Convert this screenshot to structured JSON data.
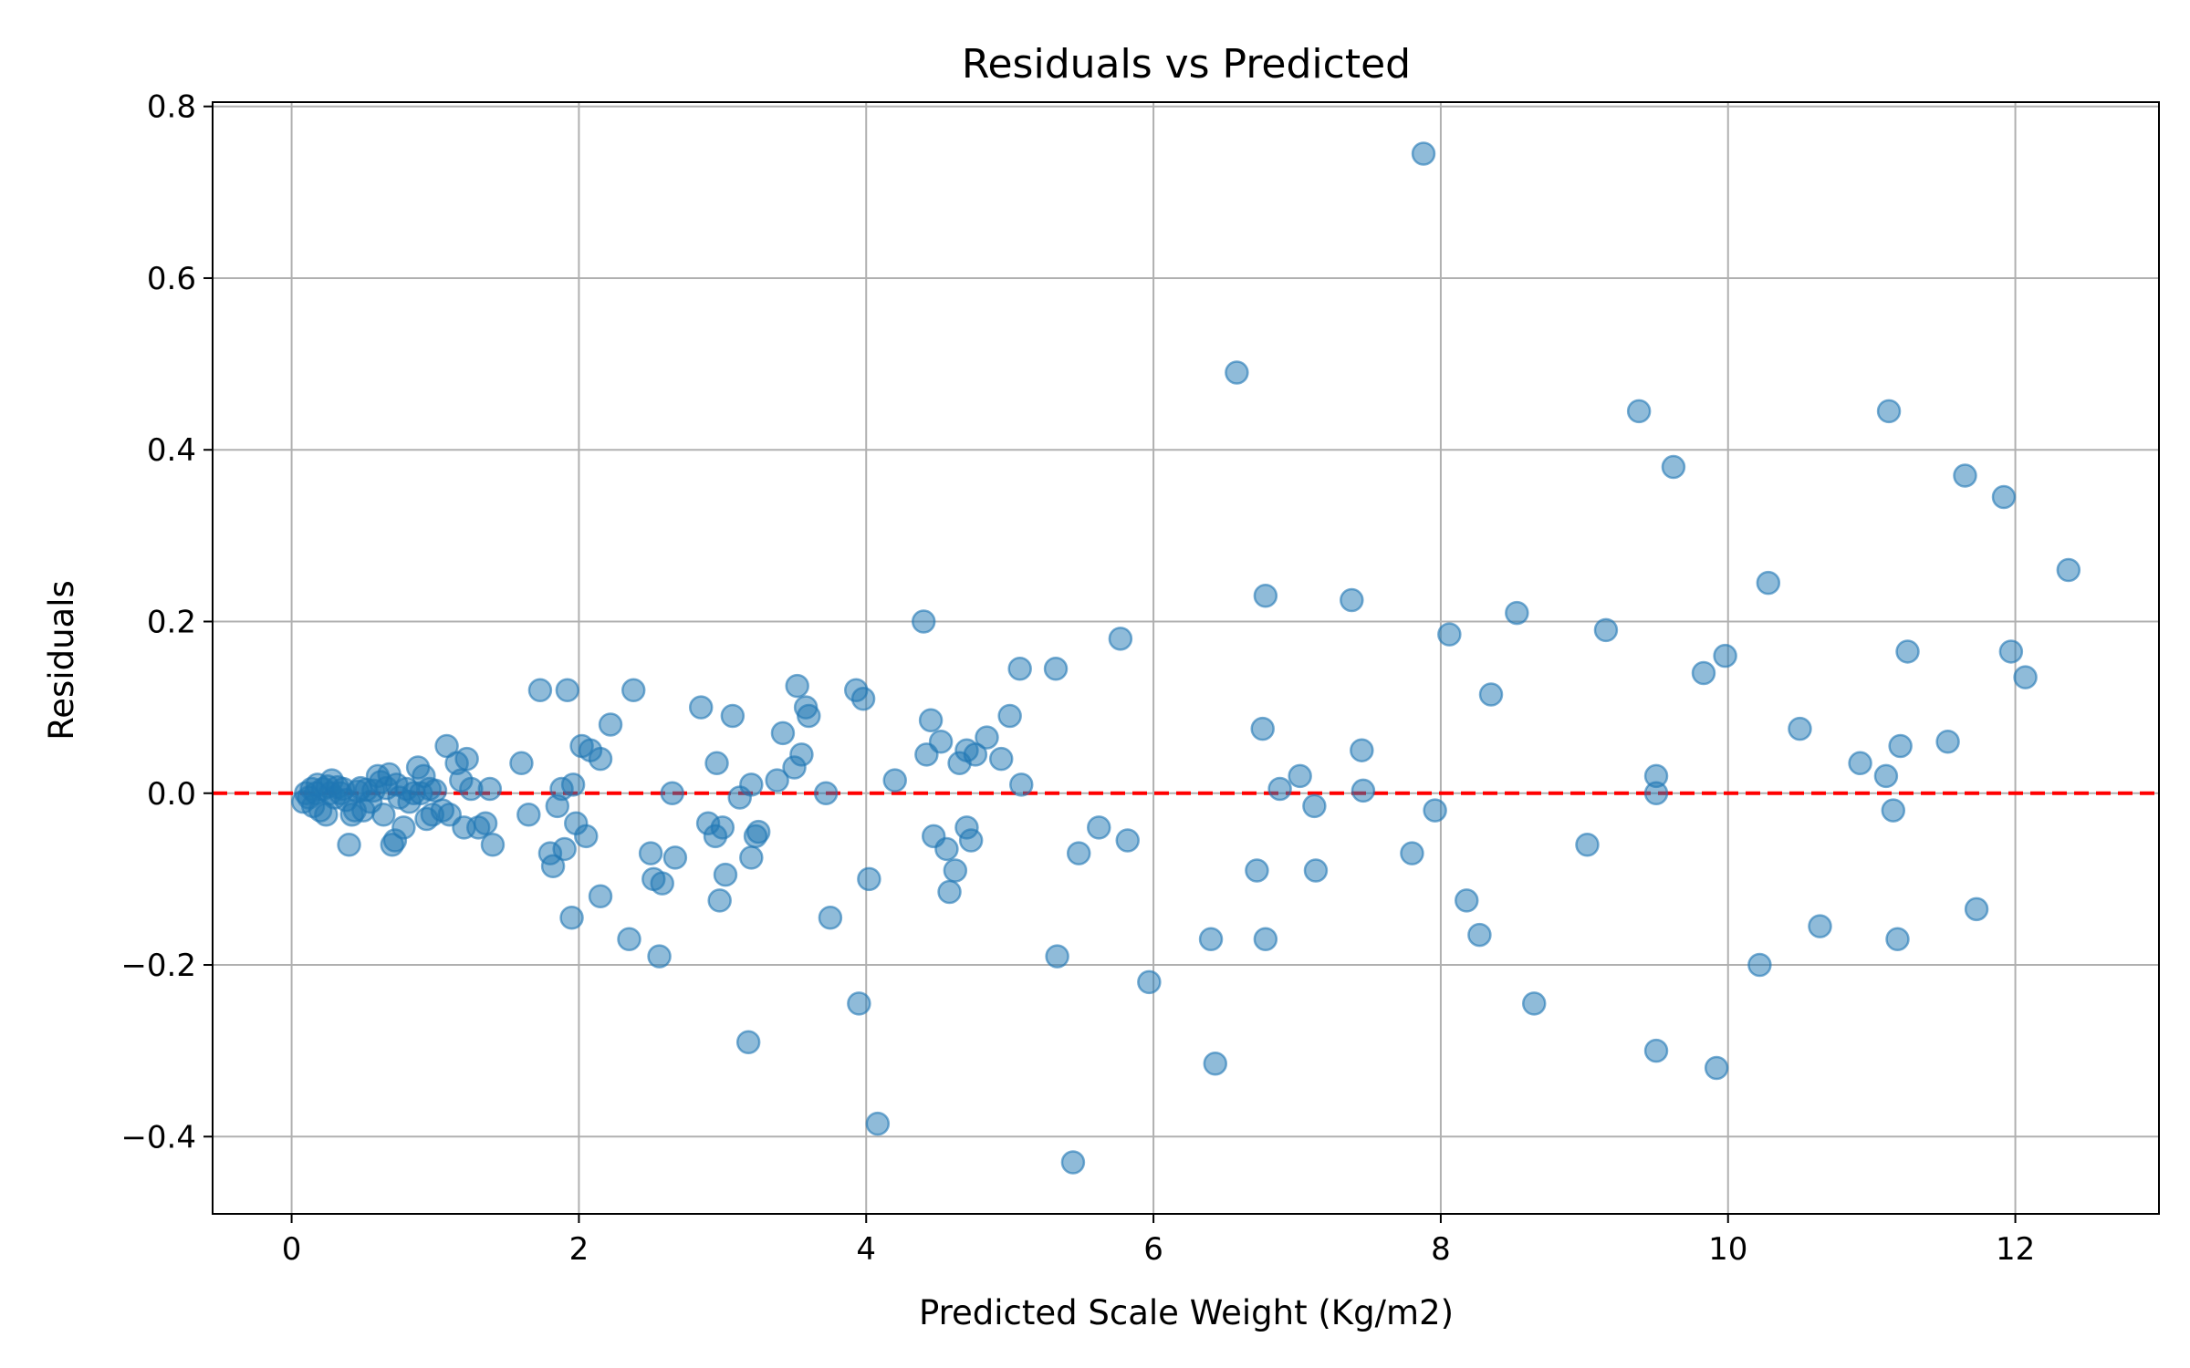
{
  "chart_data": {
    "type": "scatter",
    "title": "Residuals vs Predicted",
    "xlabel": "Predicted Scale Weight (Kg/m2)",
    "ylabel": "Residuals",
    "xlim": [
      -0.55,
      13.0
    ],
    "ylim": [
      -0.49,
      0.805
    ],
    "xticks": [
      0,
      2,
      4,
      6,
      8,
      10,
      12
    ],
    "xtick_labels": [
      "0",
      "2",
      "4",
      "6",
      "8",
      "10",
      "12"
    ],
    "yticks": [
      -0.4,
      -0.2,
      0.0,
      0.2,
      0.4,
      0.6,
      0.8
    ],
    "ytick_labels": [
      "−0.4",
      "−0.2",
      "0.0",
      "0.2",
      "0.4",
      "0.6",
      "0.8"
    ],
    "grid": true,
    "reference_line": {
      "y": 0.0,
      "style": "dashed",
      "color": "#ff0000"
    },
    "marker_color": "#1f77b4",
    "points": [
      [
        0.08,
        -0.01
      ],
      [
        0.1,
        0.0
      ],
      [
        0.12,
        -0.005
      ],
      [
        0.14,
        0.005
      ],
      [
        0.15,
        -0.015
      ],
      [
        0.17,
        0.0
      ],
      [
        0.18,
        0.01
      ],
      [
        0.2,
        -0.02
      ],
      [
        0.22,
        0.005
      ],
      [
        0.24,
        -0.025
      ],
      [
        0.25,
        0.008
      ],
      [
        0.27,
        0.0
      ],
      [
        0.28,
        0.015
      ],
      [
        0.3,
        -0.005
      ],
      [
        0.32,
        0.007
      ],
      [
        0.34,
        0.0
      ],
      [
        0.36,
        0.005
      ],
      [
        0.38,
        -0.008
      ],
      [
        0.4,
        -0.06
      ],
      [
        0.42,
        -0.025
      ],
      [
        0.44,
        -0.02
      ],
      [
        0.46,
        0.002
      ],
      [
        0.48,
        0.006
      ],
      [
        0.5,
        -0.02
      ],
      [
        0.52,
        0.004
      ],
      [
        0.55,
        -0.01
      ],
      [
        0.57,
        0.003
      ],
      [
        0.6,
        0.02
      ],
      [
        0.62,
        0.013
      ],
      [
        0.64,
        -0.025
      ],
      [
        0.66,
        0.006
      ],
      [
        0.68,
        0.022
      ],
      [
        0.7,
        -0.06
      ],
      [
        0.72,
        -0.055
      ],
      [
        0.73,
        0.01
      ],
      [
        0.75,
        -0.005
      ],
      [
        0.78,
        -0.04
      ],
      [
        0.8,
        0.005
      ],
      [
        0.82,
        -0.01
      ],
      [
        0.85,
        0.0
      ],
      [
        0.88,
        0.03
      ],
      [
        0.9,
        0.0
      ],
      [
        0.92,
        0.02
      ],
      [
        0.94,
        -0.03
      ],
      [
        0.96,
        0.005
      ],
      [
        0.98,
        -0.025
      ],
      [
        1.0,
        0.003
      ],
      [
        1.05,
        -0.02
      ],
      [
        1.08,
        0.055
      ],
      [
        1.1,
        -0.025
      ],
      [
        1.15,
        0.035
      ],
      [
        1.18,
        0.015
      ],
      [
        1.2,
        -0.04
      ],
      [
        1.22,
        0.04
      ],
      [
        1.25,
        0.005
      ],
      [
        1.3,
        -0.04
      ],
      [
        1.35,
        -0.035
      ],
      [
        1.38,
        0.005
      ],
      [
        1.4,
        -0.06
      ],
      [
        1.6,
        0.035
      ],
      [
        1.65,
        -0.025
      ],
      [
        1.73,
        0.12
      ],
      [
        1.8,
        -0.07
      ],
      [
        1.82,
        -0.085
      ],
      [
        1.85,
        -0.015
      ],
      [
        1.88,
        0.005
      ],
      [
        1.9,
        -0.065
      ],
      [
        1.92,
        0.12
      ],
      [
        1.95,
        -0.145
      ],
      [
        1.96,
        0.01
      ],
      [
        1.98,
        -0.035
      ],
      [
        2.02,
        0.055
      ],
      [
        2.05,
        -0.05
      ],
      [
        2.08,
        0.05
      ],
      [
        2.15,
        0.04
      ],
      [
        2.15,
        -0.12
      ],
      [
        2.22,
        0.08
      ],
      [
        2.35,
        -0.17
      ],
      [
        2.38,
        0.12
      ],
      [
        2.5,
        -0.07
      ],
      [
        2.52,
        -0.1
      ],
      [
        2.56,
        -0.19
      ],
      [
        2.58,
        -0.105
      ],
      [
        2.65,
        0.0
      ],
      [
        2.67,
        -0.075
      ],
      [
        2.85,
        0.1
      ],
      [
        2.9,
        -0.035
      ],
      [
        2.95,
        -0.05
      ],
      [
        2.96,
        0.035
      ],
      [
        2.98,
        -0.125
      ],
      [
        3.0,
        -0.04
      ],
      [
        3.02,
        -0.095
      ],
      [
        3.07,
        0.09
      ],
      [
        3.12,
        -0.005
      ],
      [
        3.18,
        -0.29
      ],
      [
        3.2,
        0.01
      ],
      [
        3.2,
        -0.075
      ],
      [
        3.23,
        -0.05
      ],
      [
        3.25,
        -0.045
      ],
      [
        3.38,
        0.015
      ],
      [
        3.42,
        0.07
      ],
      [
        3.5,
        0.03
      ],
      [
        3.52,
        0.125
      ],
      [
        3.55,
        0.045
      ],
      [
        3.58,
        0.1
      ],
      [
        3.6,
        0.09
      ],
      [
        3.72,
        0.0
      ],
      [
        3.75,
        -0.145
      ],
      [
        3.93,
        0.12
      ],
      [
        3.95,
        -0.245
      ],
      [
        3.98,
        0.11
      ],
      [
        4.02,
        -0.1
      ],
      [
        4.08,
        -0.385
      ],
      [
        4.2,
        0.015
      ],
      [
        4.4,
        0.2
      ],
      [
        4.42,
        0.045
      ],
      [
        4.45,
        0.085
      ],
      [
        4.47,
        -0.05
      ],
      [
        4.52,
        0.06
      ],
      [
        4.56,
        -0.065
      ],
      [
        4.58,
        -0.115
      ],
      [
        4.62,
        -0.09
      ],
      [
        4.65,
        0.035
      ],
      [
        4.7,
        -0.04
      ],
      [
        4.7,
        0.05
      ],
      [
        4.73,
        -0.055
      ],
      [
        4.76,
        0.045
      ],
      [
        4.84,
        0.065
      ],
      [
        4.94,
        0.04
      ],
      [
        5.0,
        0.09
      ],
      [
        5.07,
        0.145
      ],
      [
        5.08,
        0.01
      ],
      [
        5.32,
        0.145
      ],
      [
        5.33,
        -0.19
      ],
      [
        5.44,
        -0.43
      ],
      [
        5.48,
        -0.07
      ],
      [
        5.62,
        -0.04
      ],
      [
        5.77,
        0.18
      ],
      [
        5.82,
        -0.055
      ],
      [
        5.97,
        -0.22
      ],
      [
        6.4,
        -0.17
      ],
      [
        6.43,
        -0.315
      ],
      [
        6.58,
        0.49
      ],
      [
        6.72,
        -0.09
      ],
      [
        6.76,
        0.075
      ],
      [
        6.78,
        0.23
      ],
      [
        6.78,
        -0.17
      ],
      [
        6.88,
        0.005
      ],
      [
        7.02,
        0.02
      ],
      [
        7.12,
        -0.015
      ],
      [
        7.13,
        -0.09
      ],
      [
        7.38,
        0.225
      ],
      [
        7.45,
        0.05
      ],
      [
        7.46,
        0.003
      ],
      [
        7.8,
        -0.07
      ],
      [
        7.88,
        0.745
      ],
      [
        7.96,
        -0.02
      ],
      [
        8.06,
        0.185
      ],
      [
        8.18,
        -0.125
      ],
      [
        8.27,
        -0.165
      ],
      [
        8.35,
        0.115
      ],
      [
        8.53,
        0.21
      ],
      [
        8.65,
        -0.245
      ],
      [
        9.02,
        -0.06
      ],
      [
        9.15,
        0.19
      ],
      [
        9.38,
        0.445
      ],
      [
        9.5,
        -0.3
      ],
      [
        9.5,
        0.02
      ],
      [
        9.5,
        0.0
      ],
      [
        9.62,
        0.38
      ],
      [
        9.83,
        0.14
      ],
      [
        9.92,
        -0.32
      ],
      [
        9.98,
        0.16
      ],
      [
        10.22,
        -0.2
      ],
      [
        10.28,
        0.245
      ],
      [
        10.5,
        0.075
      ],
      [
        10.64,
        -0.155
      ],
      [
        10.92,
        0.035
      ],
      [
        11.1,
        0.02
      ],
      [
        11.12,
        0.445
      ],
      [
        11.15,
        -0.02
      ],
      [
        11.18,
        -0.17
      ],
      [
        11.2,
        0.055
      ],
      [
        11.25,
        0.165
      ],
      [
        11.53,
        0.06
      ],
      [
        11.65,
        0.37
      ],
      [
        11.73,
        -0.135
      ],
      [
        11.92,
        0.345
      ],
      [
        11.97,
        0.165
      ],
      [
        12.07,
        0.135
      ],
      [
        12.37,
        0.26
      ]
    ]
  }
}
